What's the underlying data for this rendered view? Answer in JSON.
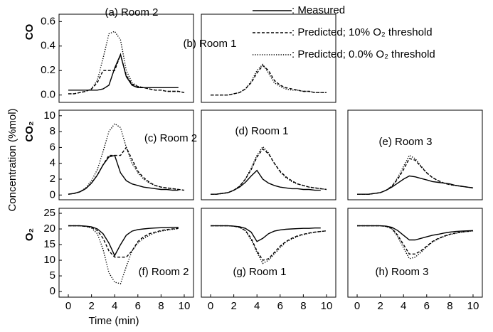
{
  "x_label": "Time (min)",
  "y_label": "Concentration (%mol)",
  "legend": [
    {
      "name": ": Measured",
      "style": "solid",
      "color": "#000000"
    },
    {
      "name": ": Predicted; 10% O₂ threshold",
      "style": "dashed",
      "color": "#000000"
    },
    {
      "name": ": Predicted; 0.0% O₂ threshold",
      "style": "dotted",
      "color": "#000000"
    }
  ],
  "chart_data": [
    {
      "type": "line",
      "title": "(a) Room 2",
      "y_axis_label": "CO",
      "x": [
        0,
        0.5,
        1,
        1.5,
        2,
        2.5,
        3,
        3.5,
        4,
        4.5,
        5,
        5.5,
        6,
        6.5,
        7,
        7.5,
        8,
        8.5,
        9,
        9.5,
        10
      ],
      "xlim": [
        -0.8,
        10.8
      ],
      "ylim": [
        -0.06,
        0.66
      ],
      "yticks": [
        {
          "value": 0,
          "label": "0.0"
        },
        {
          "value": 0.2,
          "label": "0.2"
        },
        {
          "value": 0.4,
          "label": "0.4"
        },
        {
          "value": 0.6,
          "label": "0.6"
        }
      ],
      "series": [
        {
          "legend": 0,
          "values": [
            0.04,
            0.04,
            0.04,
            0.04,
            0.04,
            0.04,
            0.05,
            0.08,
            0.22,
            0.33,
            0.15,
            0.08,
            0.06,
            0.06,
            0.06,
            0.06,
            0.06,
            0.06,
            0.06,
            0.06,
            null
          ]
        },
        {
          "legend": 1,
          "values": [
            0.01,
            0.01,
            0.02,
            0.03,
            0.05,
            0.1,
            0.2,
            0.2,
            0.2,
            0.33,
            0.16,
            0.09,
            0.07,
            0.06,
            0.05,
            0.04,
            0.04,
            0.03,
            0.03,
            0.03,
            0.02
          ]
        },
        {
          "legend": 2,
          "values": [
            0.01,
            0.01,
            0.02,
            0.03,
            0.05,
            0.12,
            0.3,
            0.5,
            0.52,
            0.45,
            0.2,
            0.1,
            0.07,
            0.06,
            0.05,
            0.04,
            0.04,
            0.03,
            0.03,
            0.03,
            0.02
          ]
        }
      ]
    },
    {
      "type": "line",
      "title": "(b) Room 1",
      "x": [
        0,
        0.5,
        1,
        1.5,
        2,
        2.5,
        3,
        3.5,
        4,
        4.5,
        5,
        5.5,
        6,
        6.5,
        7,
        7.5,
        8,
        8.5,
        9,
        9.5,
        10
      ],
      "xlim": [
        -0.8,
        10.8
      ],
      "ylim": [
        -0.06,
        0.66
      ],
      "series": [
        {
          "legend": 1,
          "values": [
            0,
            0,
            0,
            0,
            0.01,
            0.02,
            0.05,
            0.1,
            0.18,
            0.24,
            0.2,
            0.12,
            0.08,
            0.06,
            0.05,
            0.04,
            0.03,
            0.03,
            0.02,
            0.02,
            0.02
          ]
        },
        {
          "legend": 2,
          "values": [
            0,
            0,
            0,
            0,
            0.01,
            0.02,
            0.05,
            0.11,
            0.2,
            0.25,
            0.18,
            0.1,
            0.07,
            0.05,
            0.04,
            0.04,
            0.03,
            0.03,
            0.02,
            0.02,
            0.02
          ]
        }
      ]
    },
    {
      "type": "line",
      "title": "(c) Room 2",
      "y_axis_label": "CO₂",
      "x": [
        0,
        0.5,
        1,
        1.5,
        2,
        2.5,
        3,
        3.5,
        4,
        4.5,
        5,
        5.5,
        6,
        6.5,
        7,
        7.5,
        8,
        8.5,
        9,
        9.5,
        10
      ],
      "xlim": [
        -0.8,
        10.8
      ],
      "ylim": [
        -0.6,
        10.7
      ],
      "yticks": [
        0,
        2,
        4,
        6,
        8,
        10
      ],
      "series": [
        {
          "legend": 0,
          "values": [
            0.1,
            0.2,
            0.4,
            0.8,
            1.5,
            2.5,
            3.8,
            4.8,
            5,
            2.8,
            1.8,
            1.4,
            1.2,
            1,
            0.9,
            0.8,
            0.7,
            0.7,
            0.6,
            0.6,
            null
          ]
        },
        {
          "legend": 1,
          "values": [
            0.1,
            0.2,
            0.4,
            0.8,
            1.5,
            2.5,
            3.8,
            5,
            5,
            5,
            6,
            4.5,
            3,
            2.2,
            1.6,
            1.2,
            1,
            0.9,
            0.8,
            0.7,
            0.6
          ]
        },
        {
          "legend": 2,
          "values": [
            0.1,
            0.2,
            0.4,
            0.9,
            1.8,
            3.2,
            5.5,
            8,
            9,
            8.5,
            6,
            4,
            2.8,
            2,
            1.5,
            1.2,
            1,
            0.9,
            0.8,
            0.7,
            0.6
          ]
        }
      ]
    },
    {
      "type": "line",
      "title": "(d) Room 1",
      "x": [
        0,
        0.5,
        1,
        1.5,
        2,
        2.5,
        3,
        3.5,
        4,
        4.5,
        5,
        5.5,
        6,
        6.5,
        7,
        7.5,
        8,
        8.5,
        9,
        9.5,
        10
      ],
      "xlim": [
        -0.8,
        10.8
      ],
      "ylim": [
        -0.6,
        10.7
      ],
      "series": [
        {
          "legend": 0,
          "values": [
            0.1,
            0.1,
            0.2,
            0.3,
            0.6,
            1,
            1.6,
            2.4,
            3.1,
            2,
            1.5,
            1.2,
            1,
            0.9,
            0.8,
            0.8,
            0.7,
            0.7,
            0.6,
            0.6,
            null
          ]
        },
        {
          "legend": 1,
          "values": [
            0.1,
            0.1,
            0.2,
            0.3,
            0.6,
            1.1,
            2,
            3.2,
            4.8,
            5.8,
            5.2,
            4,
            3,
            2.3,
            1.8,
            1.4,
            1.2,
            1,
            0.9,
            0.8,
            0.7
          ]
        },
        {
          "legend": 2,
          "values": [
            0.1,
            0.1,
            0.2,
            0.3,
            0.6,
            1.1,
            2,
            3.4,
            5,
            6.1,
            5.3,
            4,
            2.9,
            2.2,
            1.7,
            1.4,
            1.2,
            1,
            0.9,
            0.8,
            0.7
          ]
        }
      ]
    },
    {
      "type": "line",
      "title": "(e) Room 3",
      "x": [
        0,
        0.5,
        1,
        1.5,
        2,
        2.5,
        3,
        3.5,
        4,
        4.5,
        5,
        5.5,
        6,
        6.5,
        7,
        7.5,
        8,
        8.5,
        9,
        9.5,
        10
      ],
      "xlim": [
        -0.8,
        10.8
      ],
      "ylim": [
        -0.6,
        10.7
      ],
      "series": [
        {
          "legend": 0,
          "values": [
            0.1,
            0.1,
            0.1,
            0.2,
            0.3,
            0.6,
            1,
            1.5,
            2,
            2.4,
            2.3,
            2.1,
            1.9,
            1.7,
            1.6,
            1.5,
            1.4,
            1.2,
            1.1,
            1,
            0.9
          ]
        },
        {
          "legend": 1,
          "values": [
            0.1,
            0.1,
            0.1,
            0.2,
            0.3,
            0.6,
            1.1,
            2,
            3.2,
            4.6,
            4.4,
            3.6,
            2.8,
            2.2,
            1.8,
            1.5,
            1.3,
            1.2,
            1.1,
            1,
            0.9
          ]
        },
        {
          "legend": 2,
          "values": [
            0.1,
            0.1,
            0.1,
            0.2,
            0.3,
            0.6,
            1.1,
            2.2,
            3.6,
            5,
            4.6,
            3.7,
            2.8,
            2.2,
            1.8,
            1.5,
            1.3,
            1.2,
            1.1,
            1,
            0.9
          ]
        }
      ]
    },
    {
      "type": "line",
      "title": "(f) Room 2",
      "y_axis_label": "O₂",
      "x": [
        0,
        0.5,
        1,
        1.5,
        2,
        2.5,
        3,
        3.5,
        4,
        4.5,
        5,
        5.5,
        6,
        6.5,
        7,
        7.5,
        8,
        8.5,
        9,
        9.5,
        10
      ],
      "xlim": [
        -0.8,
        10.8
      ],
      "ylim": [
        -1.8,
        26.6
      ],
      "yticks": [
        0,
        5,
        10,
        15,
        20,
        25
      ],
      "xticks": [
        0,
        2,
        4,
        6,
        8,
        10
      ],
      "series": [
        {
          "legend": 0,
          "values": [
            21,
            21,
            21,
            20.9,
            20.7,
            20,
            18.5,
            15.5,
            11.5,
            15,
            18,
            19.3,
            19.8,
            20,
            20.2,
            20.3,
            20.4,
            20.4,
            20.5,
            20.5,
            null
          ]
        },
        {
          "legend": 1,
          "values": [
            21,
            21,
            21,
            20.8,
            20.5,
            19.5,
            17,
            13,
            11,
            11,
            11,
            13,
            16,
            17.5,
            18.5,
            19,
            19.5,
            19.8,
            20,
            20.2,
            null
          ]
        },
        {
          "legend": 2,
          "values": [
            21,
            21,
            21,
            20.8,
            20.3,
            18.5,
            13.5,
            6,
            3,
            2.5,
            8,
            13,
            15.5,
            17,
            18,
            18.8,
            19.3,
            19.6,
            19.9,
            20.1,
            null
          ]
        }
      ]
    },
    {
      "type": "line",
      "title": "(g) Room 1",
      "x": [
        0,
        0.5,
        1,
        1.5,
        2,
        2.5,
        3,
        3.5,
        4,
        4.5,
        5,
        5.5,
        6,
        6.5,
        7,
        7.5,
        8,
        8.5,
        9,
        9.5,
        10
      ],
      "xlim": [
        -0.8,
        10.8
      ],
      "ylim": [
        -1.8,
        26.6
      ],
      "xticks": [
        0,
        2,
        4,
        6,
        8,
        10
      ],
      "series": [
        {
          "legend": 0,
          "values": [
            21,
            21,
            21,
            21,
            20.9,
            20.7,
            20.2,
            19,
            16,
            17,
            18.5,
            19.3,
            19.7,
            19.9,
            20,
            20.1,
            20.2,
            20.2,
            20.3,
            20.3,
            null
          ]
        },
        {
          "legend": 1,
          "values": [
            21,
            21,
            21,
            21,
            20.9,
            20.5,
            19.5,
            17,
            13,
            10,
            10.5,
            12.5,
            14.5,
            16,
            17,
            17.8,
            18.3,
            18.7,
            19,
            19.2,
            19.4
          ]
        },
        {
          "legend": 2,
          "values": [
            21,
            21,
            21,
            21,
            20.9,
            20.5,
            19.5,
            16.5,
            12.5,
            9,
            10,
            12,
            14,
            15.8,
            16.8,
            17.6,
            18.2,
            18.6,
            19,
            19.2,
            19.4
          ]
        }
      ]
    },
    {
      "type": "line",
      "title": "(h) Room 3",
      "x": [
        0,
        0.5,
        1,
        1.5,
        2,
        2.5,
        3,
        3.5,
        4,
        4.5,
        5,
        5.5,
        6,
        6.5,
        7,
        7.5,
        8,
        8.5,
        9,
        9.5,
        10
      ],
      "xlim": [
        -0.8,
        10.8
      ],
      "ylim": [
        -1.8,
        26.6
      ],
      "xticks": [
        0,
        2,
        4,
        6,
        8,
        10
      ],
      "series": [
        {
          "legend": 0,
          "values": [
            21,
            21,
            21,
            21,
            21,
            20.9,
            20.5,
            19.5,
            18,
            16.5,
            16.5,
            17,
            17.5,
            18,
            18.3,
            18.7,
            19,
            19.2,
            19.3,
            19.4,
            19.5
          ]
        },
        {
          "legend": 1,
          "values": [
            21,
            21,
            21,
            21,
            21,
            20.8,
            20.2,
            18,
            15,
            12,
            12,
            13,
            14.5,
            16,
            17,
            17.7,
            18.3,
            18.7,
            19,
            19.2,
            19.4
          ]
        },
        {
          "legend": 2,
          "values": [
            21,
            21,
            21,
            21,
            21,
            20.8,
            20,
            17.5,
            14,
            10.5,
            11,
            12.5,
            14.3,
            15.8,
            16.8,
            17.6,
            18.2,
            18.6,
            19,
            19.2,
            19.4
          ]
        }
      ]
    }
  ]
}
